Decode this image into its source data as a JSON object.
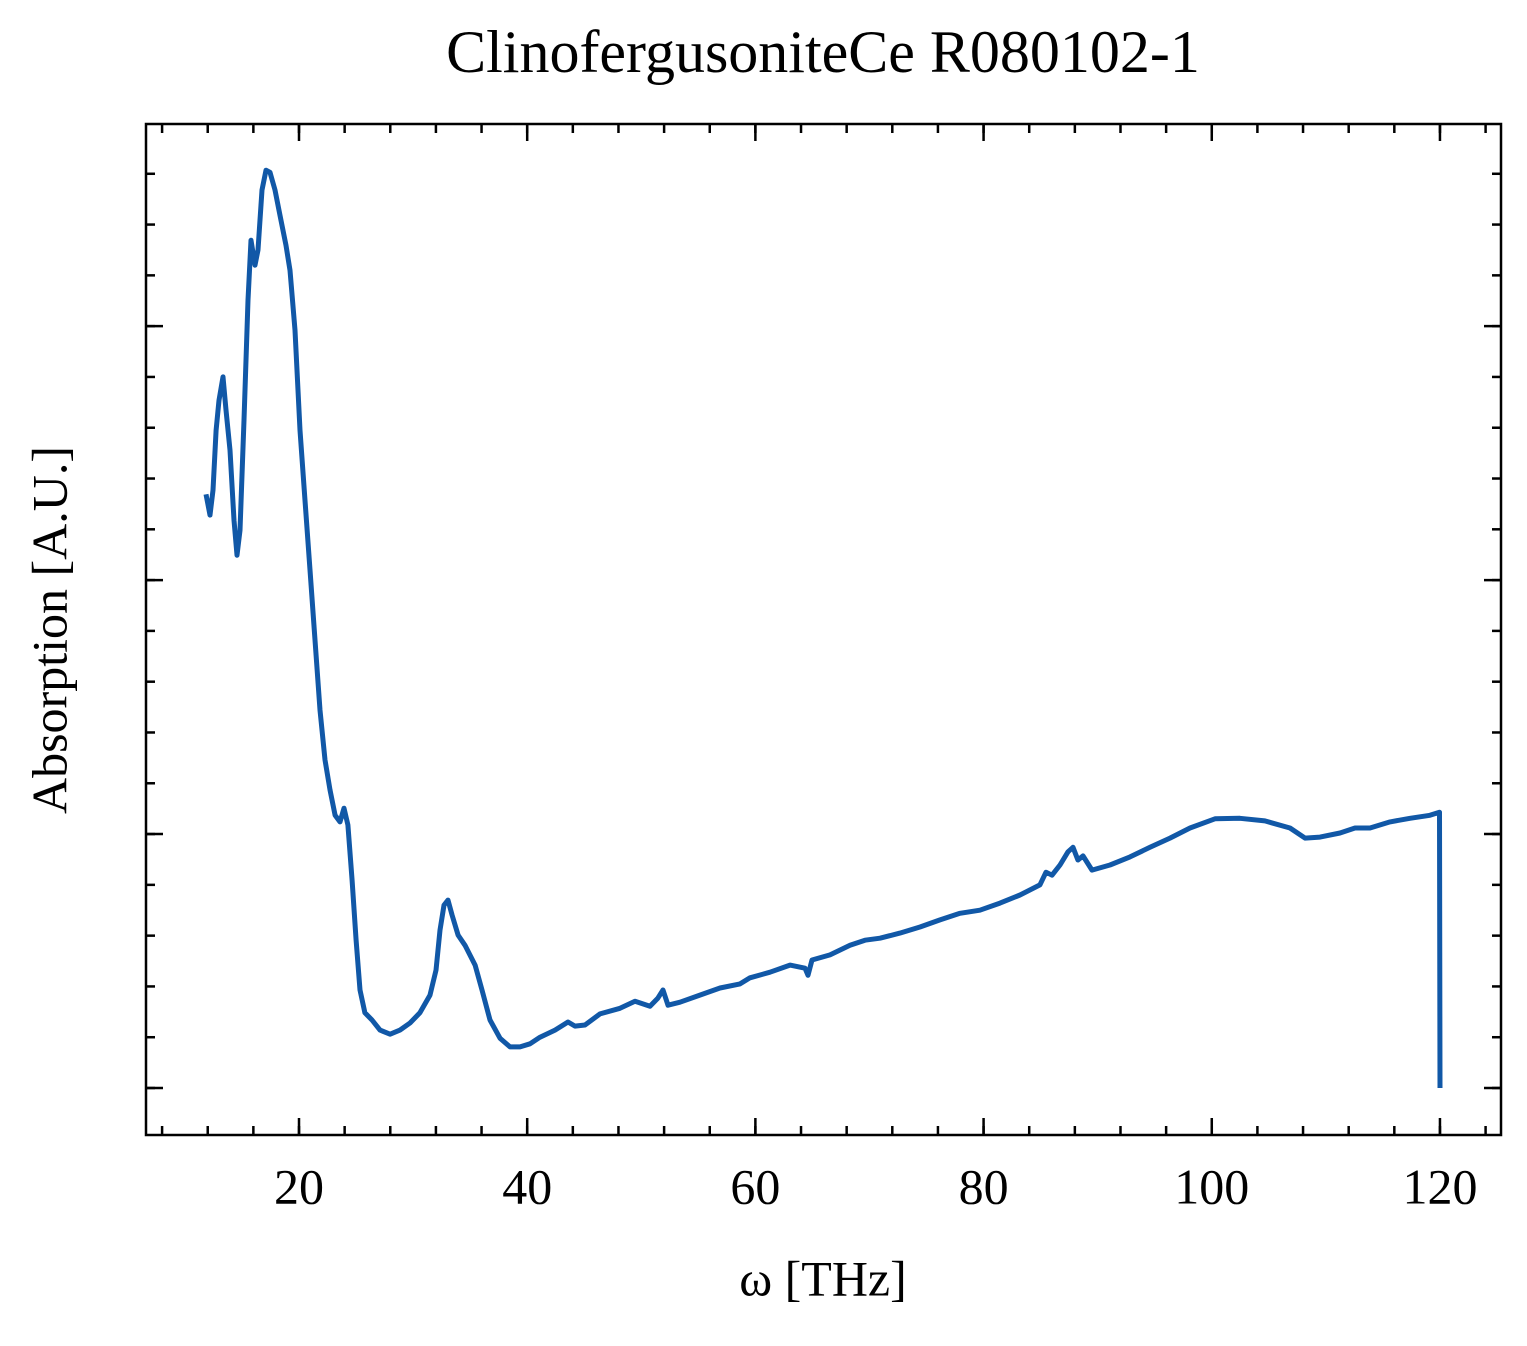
{
  "chart_data": {
    "type": "line",
    "title": "ClinofergusoniteCe R080102-1",
    "xlabel": "ω [THz]",
    "ylabel": "Absorption [A.U.]",
    "color": "#1158a7",
    "xlim": [
      6.59,
      125.35
    ],
    "ylim": [
      -0.0925,
      1.898
    ],
    "xticks": [
      20,
      40,
      60,
      80,
      100,
      120
    ],
    "yticks": [
      0,
      0.5,
      1,
      1.5
    ],
    "x": [
      11.85,
      12.2,
      12.46,
      12.73,
      12.99,
      13.34,
      13.6,
      13.95,
      14.3,
      14.57,
      14.83,
      15.18,
      15.53,
      15.79,
      16.14,
      16.41,
      16.76,
      17.11,
      17.46,
      17.9,
      18.33,
      18.86,
      19.21,
      19.65,
      20.09,
      20.53,
      20.96,
      21.4,
      21.84,
      22.28,
      22.72,
      23.16,
      23.59,
      23.94,
      24.29,
      24.65,
      25.0,
      25.35,
      25.78,
      26.4,
      27.1,
      27.98,
      28.85,
      29.73,
      30.6,
      31.48,
      32.01,
      32.36,
      32.71,
      33.06,
      33.41,
      33.94,
      34.55,
      35.43,
      36.04,
      36.74,
      37.62,
      38.49,
      39.37,
      40.25,
      41.12,
      42.44,
      43.58,
      44.19,
      45.07,
      46.38,
      48.13,
      49.45,
      50.76,
      51.46,
      51.9,
      52.34,
      53.39,
      55.14,
      56.9,
      58.65,
      59.53,
      61.28,
      63.03,
      64.35,
      64.61,
      64.96,
      66.54,
      68.29,
      69.61,
      70.92,
      72.67,
      74.43,
      76.18,
      77.93,
      79.68,
      81.44,
      83.19,
      84.94,
      85.47,
      86.0,
      86.7,
      87.4,
      87.84,
      88.27,
      88.71,
      89.5,
      91.08,
      92.83,
      94.59,
      96.34,
      98.09,
      100.28,
      102.47,
      104.66,
      106.86,
      108.17,
      109.49,
      111.24,
      112.55,
      113.87,
      115.62,
      117.37,
      119.12,
      119.96,
      120.0
    ],
    "values": [
      1.169,
      1.128,
      1.177,
      1.295,
      1.354,
      1.4,
      1.335,
      1.256,
      1.118,
      1.049,
      1.098,
      1.315,
      1.551,
      1.669,
      1.62,
      1.65,
      1.768,
      1.807,
      1.803,
      1.768,
      1.719,
      1.659,
      1.61,
      1.492,
      1.295,
      1.157,
      1.02,
      0.882,
      0.744,
      0.646,
      0.587,
      0.537,
      0.524,
      0.551,
      0.518,
      0.409,
      0.291,
      0.193,
      0.148,
      0.134,
      0.114,
      0.106,
      0.114,
      0.128,
      0.148,
      0.183,
      0.232,
      0.311,
      0.36,
      0.37,
      0.341,
      0.301,
      0.281,
      0.242,
      0.193,
      0.134,
      0.098,
      0.081,
      0.081,
      0.087,
      0.1,
      0.114,
      0.13,
      0.122,
      0.124,
      0.146,
      0.157,
      0.171,
      0.161,
      0.177,
      0.193,
      0.163,
      0.169,
      0.183,
      0.197,
      0.205,
      0.217,
      0.228,
      0.242,
      0.236,
      0.222,
      0.252,
      0.262,
      0.281,
      0.291,
      0.295,
      0.305,
      0.317,
      0.331,
      0.344,
      0.35,
      0.364,
      0.38,
      0.4,
      0.425,
      0.419,
      0.439,
      0.465,
      0.474,
      0.449,
      0.457,
      0.429,
      0.439,
      0.455,
      0.474,
      0.492,
      0.512,
      0.53,
      0.531,
      0.526,
      0.512,
      0.492,
      0.494,
      0.502,
      0.512,
      0.512,
      0.524,
      0.531,
      0.537,
      0.543,
      0
    ]
  }
}
